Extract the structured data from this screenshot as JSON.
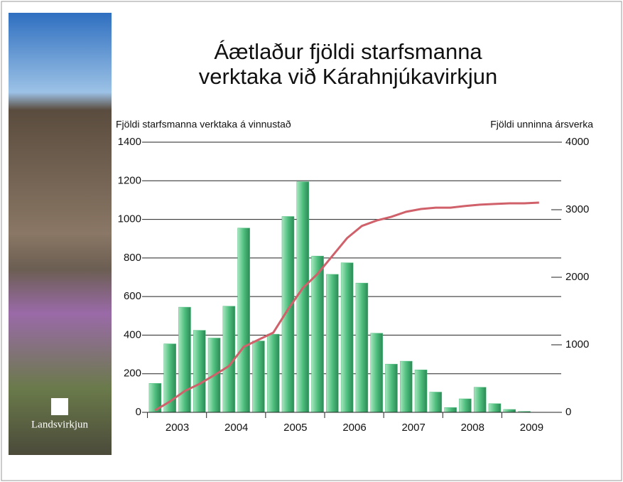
{
  "logo": "Landsvirkjun",
  "chart_data": {
    "type": "bar",
    "title": [
      "Áætlaður fjöldi starfsmanna",
      "verktaka við Kárahnjúkavirkjun"
    ],
    "y_label": "Fjöldi starfsmanna verktaka á vinnustað",
    "y2_label": "Fjöldi unninna ársverka",
    "x": [
      2003.125,
      2003.375,
      2003.625,
      2003.875,
      2004.125,
      2004.375,
      2004.625,
      2004.875,
      2005.125,
      2005.375,
      2005.625,
      2005.875,
      2006.125,
      2006.375,
      2006.625,
      2006.875,
      2007.125,
      2007.375,
      2007.625,
      2007.875,
      2008.125,
      2008.375,
      2008.625,
      2008.875,
      2009.125,
      2009.375,
      2009.625
    ],
    "xlim": [
      2003,
      2010
    ],
    "xticks": [
      {
        "value": 2003.5,
        "label": "2003"
      },
      {
        "value": 2004.5,
        "label": "2004"
      },
      {
        "value": 2005.5,
        "label": "2005"
      },
      {
        "value": 2006.5,
        "label": "2006"
      },
      {
        "value": 2007.5,
        "label": "2007"
      },
      {
        "value": 2008.5,
        "label": "2008"
      },
      {
        "value": 2009.5,
        "label": "2009"
      }
    ],
    "ylim": [
      0,
      1400
    ],
    "yticks": [
      0,
      200,
      400,
      600,
      800,
      1000,
      1200,
      1400
    ],
    "y2lim": [
      0,
      4000
    ],
    "y2ticks": [
      0,
      1000,
      2000,
      3000,
      4000
    ],
    "grid": true,
    "series": [
      {
        "type": "bar",
        "color": "#4fbf7e",
        "values": [
          150,
          355,
          545,
          425,
          385,
          550,
          955,
          370,
          405,
          1015,
          1195,
          810,
          715,
          775,
          670,
          410,
          250,
          265,
          220,
          105,
          25,
          70,
          130,
          45,
          15,
          5,
          0
        ]
      },
      {
        "type": "line",
        "axis": "y2",
        "color": "#d0606a",
        "values": [
          30,
          160,
          315,
          420,
          550,
          685,
          970,
          1075,
          1180,
          1525,
          1840,
          2050,
          2315,
          2580,
          2760,
          2840,
          2895,
          2970,
          3010,
          3030,
          3030,
          3055,
          3075,
          3085,
          3095,
          3095,
          3105
        ]
      }
    ]
  }
}
